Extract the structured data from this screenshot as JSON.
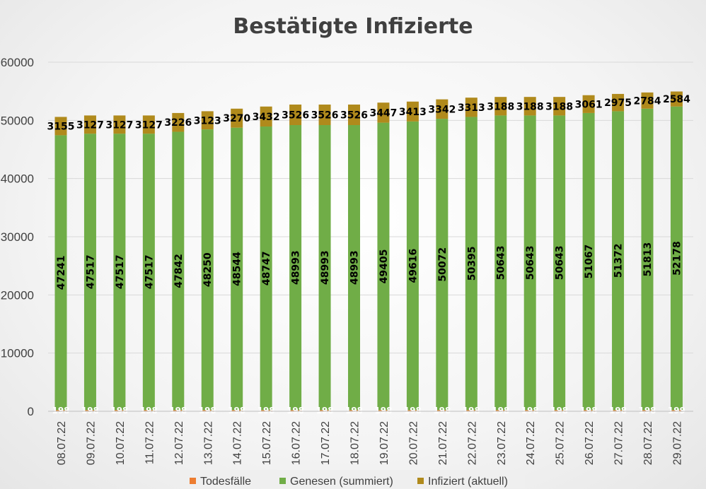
{
  "chart_data": {
    "type": "bar",
    "stacked": true,
    "title": "Bestätigte Infizierte",
    "categories": [
      "08.07.22",
      "09.07.22",
      "10.07.22",
      "11.07.22",
      "12.07.22",
      "13.07.22",
      "14.07.22",
      "15.07.22",
      "16.07.22",
      "17.07.22",
      "18.07.22",
      "19.07.22",
      "20.07.22",
      "21.07.22",
      "22.07.22",
      "23.07.22",
      "24.07.22",
      "25.07.22",
      "26.07.22",
      "27.07.22",
      "28.07.22",
      "29.07.22"
    ],
    "series": [
      {
        "name": "Todesfälle",
        "color": "#ed7d31",
        "values": [
          198,
          198,
          198,
          198,
          198,
          198,
          198,
          198,
          198,
          198,
          198,
          198,
          198,
          198,
          198,
          198,
          198,
          198,
          198,
          198,
          198,
          199
        ]
      },
      {
        "name": "Genesen (summiert)",
        "color": "#70ad47",
        "values": [
          47241,
          47517,
          47517,
          47517,
          47842,
          48250,
          48544,
          48747,
          48993,
          48993,
          48993,
          49405,
          49616,
          50072,
          50395,
          50643,
          50643,
          50643,
          51067,
          51372,
          51813,
          52178
        ]
      },
      {
        "name": "Infiziert (aktuell)",
        "color": "#b08a1c",
        "values": [
          3155,
          3127,
          3127,
          3127,
          3226,
          3123,
          3270,
          3432,
          3526,
          3526,
          3526,
          3447,
          3413,
          3342,
          3313,
          3188,
          3188,
          3188,
          3061,
          2975,
          2784,
          2584
        ]
      }
    ],
    "yticks": [
      "0",
      "10000",
      "20000",
      "30000",
      "40000",
      "50000",
      "60000"
    ],
    "ylim": [
      0,
      60000
    ],
    "grid": true,
    "legend": "bottom"
  }
}
